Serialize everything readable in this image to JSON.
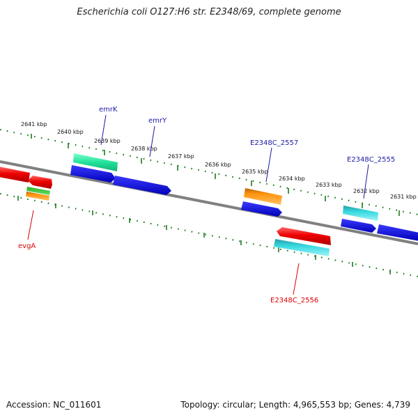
{
  "title": "Escherichia coli O127:H6 str. E2348/69, complete genome",
  "footer": {
    "accession": "Accession: NC_011601",
    "topology": "Topology: circular; Length: 4,965,553 bp; Genes: 4,739"
  },
  "scale_labels": [
    "2641 kbp",
    "2640 kbp",
    "2639 kbp",
    "2638 kbp",
    "2637 kbp",
    "2636 kbp",
    "2635 kbp",
    "2634 kbp",
    "2633 kbp",
    "2632 kbp",
    "2631 kbp"
  ],
  "gene_labels": [
    {
      "name": "emrK",
      "color": "#1a1aa6"
    },
    {
      "name": "emrY",
      "color": "#1a1aa6"
    },
    {
      "name": "E2348C_2557",
      "color": "#1a1aa6"
    },
    {
      "name": "E2348C_2555",
      "color": "#1a1aa6"
    },
    {
      "name": "evgA",
      "color": "#dd0000"
    },
    {
      "name": "E2348C_2556",
      "color": "#dd0000"
    }
  ],
  "colors": {
    "backbone": "#808080",
    "tick_minor": "#1d7a1d",
    "tick_major": "#1d7a1d",
    "cds_blue": "#1010e0",
    "cds_red": "#ee0000",
    "cds_green_light": "#2ef0a0",
    "cds_cyan": "#20c8d0",
    "cds_orange": "#ff8c00",
    "cds_green": "#33cc33"
  }
}
